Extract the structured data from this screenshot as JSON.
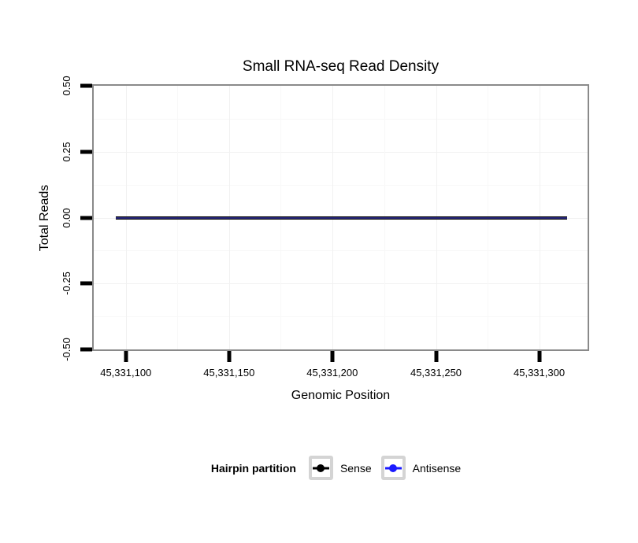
{
  "title": "Small RNA-seq Read Density",
  "x_axis": {
    "label": "Genomic Position",
    "ticks": [
      "45,331,100",
      "45,331,150",
      "45,331,200",
      "45,331,250",
      "45,331,300"
    ]
  },
  "y_axis": {
    "label": "Total Reads",
    "ticks": [
      "0.50",
      "0.25",
      "0.00",
      "-0.25",
      "-0.50"
    ]
  },
  "legend": {
    "title": "Hairpin partition",
    "items": [
      {
        "label": "Sense",
        "color": "#000000"
      },
      {
        "label": "Antisense",
        "color": "#1a1aff"
      }
    ]
  },
  "colors": {
    "panel_border": "#8a8a8a",
    "tick_marks": "#000000",
    "grid_major": "#f1f1f1",
    "grid_minor": "#f8f8f8",
    "overplotted_line_core": "#28287d",
    "legend_key_border": "#d4d4d4"
  },
  "chart_data": {
    "type": "line",
    "title": "Small RNA-seq Read Density",
    "xlabel": "Genomic Position",
    "ylabel": "Total Reads",
    "x_ticks": [
      45331100,
      45331150,
      45331200,
      45331250,
      45331300
    ],
    "xlim": [
      45331085,
      45331324
    ],
    "ylim": [
      -0.5,
      0.5
    ],
    "y_ticks": [
      0.5,
      0.25,
      0.0,
      -0.25,
      -0.5
    ],
    "grid": "faint major and minor gridlines, white panel background",
    "legend_title": "Hairpin partition",
    "legend_position": "bottom",
    "series": [
      {
        "name": "Sense",
        "color": "#000000",
        "description": "flat line at y = 0 across full x range (overplotted with Antisense)",
        "x": [
          45331095,
          45331314
        ],
        "y": [
          0,
          0
        ]
      },
      {
        "name": "Antisense",
        "color": "#1a1aff",
        "description": "flat line at y = 0 across full x range (overplotted with Sense)",
        "x": [
          45331095,
          45331314
        ],
        "y": [
          0,
          0
        ]
      }
    ]
  }
}
